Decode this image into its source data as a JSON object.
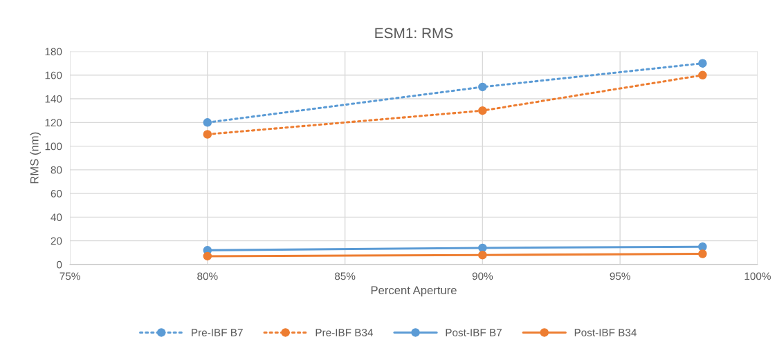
{
  "chart_data": {
    "type": "line",
    "title": "ESM1: RMS",
    "xlabel": "Percent Aperture",
    "ylabel": "RMS (nm)",
    "x": [
      80,
      90,
      98
    ],
    "series": [
      {
        "name": "Pre-IBF B7",
        "color": "#5b9bd5",
        "values": [
          120,
          150,
          170
        ],
        "line_style": "dotted"
      },
      {
        "name": "Pre-IBF B34",
        "color": "#ed7d31",
        "values": [
          110,
          130,
          160
        ],
        "line_style": "dotted"
      },
      {
        "name": "Post-IBF B7",
        "color": "#5b9bd5",
        "values": [
          12,
          14,
          15
        ],
        "line_style": "solid"
      },
      {
        "name": "Post-IBF B34",
        "color": "#ed7d31",
        "values": [
          7,
          8,
          9
        ],
        "line_style": "solid"
      }
    ],
    "xlim": [
      75,
      100
    ],
    "xticks": [
      {
        "value": 75,
        "label": "75%"
      },
      {
        "value": 80,
        "label": "80%"
      },
      {
        "value": 85,
        "label": "85%"
      },
      {
        "value": 90,
        "label": "90%"
      },
      {
        "value": 95,
        "label": "95%"
      },
      {
        "value": 100,
        "label": "100%"
      }
    ],
    "ylim": [
      0,
      180
    ],
    "yticks": [
      0,
      20,
      40,
      60,
      80,
      100,
      120,
      140,
      160,
      180
    ],
    "grid": true,
    "legend": "bottom",
    "marker": "circle"
  }
}
